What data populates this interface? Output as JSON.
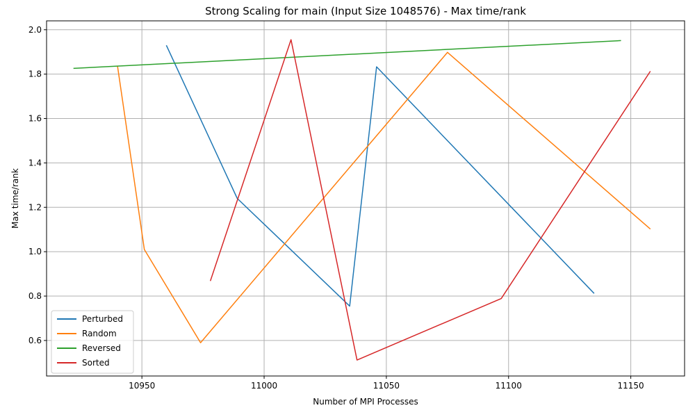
{
  "chart_data": {
    "type": "line",
    "title": "Strong Scaling for main (Input Size 1048576) - Max time/rank",
    "xlabel": "Number of MPI Processes",
    "ylabel": "Max time/rank",
    "xlim": [
      10911,
      11172
    ],
    "ylim": [
      0.44,
      2.04
    ],
    "xticks": [
      10950,
      11000,
      11050,
      11100,
      11150
    ],
    "yticks": [
      0.6,
      0.8,
      1.0,
      1.2,
      1.4,
      1.6,
      1.8,
      2.0
    ],
    "grid": true,
    "legend_position": "lower-left",
    "series": [
      {
        "name": "Perturbed",
        "color": "#1f77b4",
        "x": [
          10960,
          10989,
          11035,
          11046,
          11135
        ],
        "y": [
          1.93,
          1.24,
          0.755,
          1.833,
          0.812
        ]
      },
      {
        "name": "Random",
        "color": "#ff7f0e",
        "x": [
          10940,
          10951,
          10974,
          11075,
          11158
        ],
        "y": [
          1.838,
          1.01,
          0.59,
          1.898,
          1.102
        ]
      },
      {
        "name": "Reversed",
        "color": "#2ca02c",
        "x": [
          10922,
          11146
        ],
        "y": [
          1.826,
          1.951
        ]
      },
      {
        "name": "Sorted",
        "color": "#d62728",
        "x": [
          10978,
          11011,
          11038,
          11097,
          11158
        ],
        "y": [
          0.868,
          1.955,
          0.512,
          0.789,
          1.813
        ]
      }
    ]
  }
}
